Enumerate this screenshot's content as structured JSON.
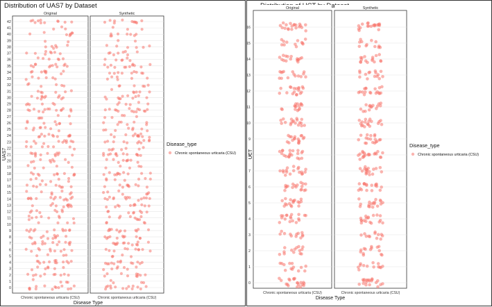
{
  "chart_data": [
    {
      "type": "scatter",
      "title": "Distribution of UAS7 by Dataset",
      "facets": [
        "Original",
        "Synthetic"
      ],
      "categories": [
        "Chronic spontaneous urticaria (CSU)"
      ],
      "xlabel": "Disease Type",
      "ylabel": "UAS7",
      "y_ticks": [
        0,
        1,
        2,
        3,
        4,
        5,
        6,
        7,
        8,
        9,
        10,
        11,
        12,
        13,
        14,
        15,
        16,
        17,
        18,
        19,
        20,
        21,
        22,
        23,
        24,
        25,
        26,
        27,
        28,
        29,
        30,
        31,
        32,
        33,
        34,
        35,
        36,
        37,
        38,
        39,
        40,
        41,
        42
      ],
      "ylim": [
        0,
        42
      ],
      "jitter_points": true,
      "point_color": "#F8766D",
      "legend": {
        "title": "Disease_type",
        "entries": [
          "Chronic spontaneous urticaria (CSU)"
        ],
        "placement": "right"
      },
      "series": [
        {
          "facet": "Original",
          "density": [
            14,
            4,
            10,
            7,
            13,
            4,
            10,
            13,
            11,
            12,
            4,
            9,
            8,
            11,
            14,
            7,
            10,
            7,
            11,
            5,
            9,
            13,
            7,
            11,
            12,
            8,
            8,
            5,
            14,
            6,
            11,
            6,
            6,
            6,
            9,
            12,
            6,
            8,
            6,
            2,
            8,
            3,
            11
          ]
        },
        {
          "facet": "Synthetic",
          "density": [
            14,
            4,
            10,
            7,
            13,
            4,
            10,
            13,
            11,
            12,
            4,
            9,
            8,
            11,
            14,
            7,
            10,
            7,
            11,
            5,
            9,
            13,
            7,
            11,
            12,
            8,
            8,
            5,
            14,
            6,
            11,
            6,
            6,
            6,
            9,
            12,
            6,
            8,
            6,
            2,
            8,
            3,
            11
          ]
        }
      ]
    },
    {
      "type": "scatter",
      "title": "Distribution of UCT by Dataset",
      "facets": [
        "Original",
        "Synthetic"
      ],
      "categories": [
        "Chronic spontaneous urticaria (CSU)"
      ],
      "xlabel": "Disease Type",
      "ylabel": "UCT",
      "y_ticks": [
        0,
        1,
        2,
        3,
        4,
        5,
        6,
        7,
        8,
        9,
        10,
        11,
        12,
        13,
        14,
        15,
        16
      ],
      "ylim": [
        0,
        16
      ],
      "jitter_points": true,
      "point_color": "#F8766D",
      "legend": {
        "title": "Disease_type",
        "entries": [
          "Chronic spontaneous urticaria (CSU)"
        ],
        "placement": "right"
      },
      "series": [
        {
          "facet": "Original",
          "density": [
            20,
            13,
            14,
            12,
            18,
            18,
            18,
            18,
            20,
            18,
            18,
            15,
            18,
            15,
            16,
            12,
            20
          ]
        },
        {
          "facet": "Synthetic",
          "density": [
            20,
            13,
            14,
            12,
            18,
            18,
            18,
            18,
            20,
            18,
            18,
            15,
            18,
            15,
            16,
            12,
            20
          ]
        }
      ]
    }
  ]
}
